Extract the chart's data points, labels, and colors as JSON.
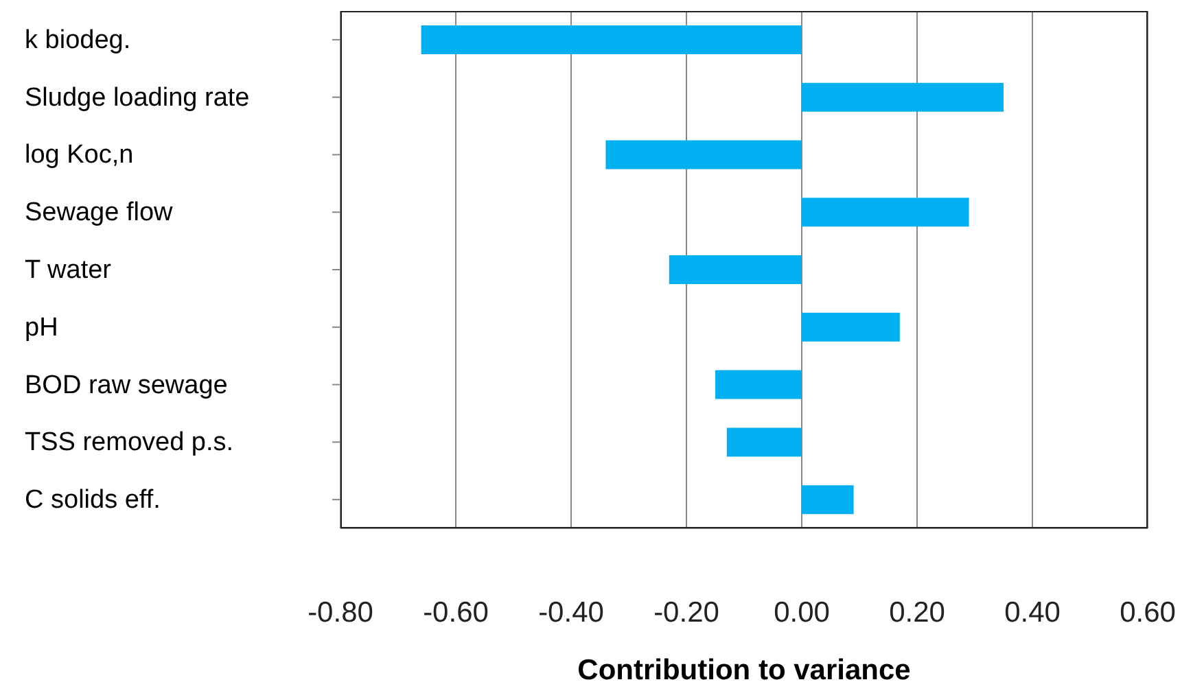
{
  "chart_data": {
    "type": "bar",
    "orientation": "horizontal",
    "xlabel": "Contribution to variance",
    "categories": [
      "k biodeg.",
      "Sludge loading rate",
      "log Koc,n",
      "Sewage flow",
      "T water",
      "pH",
      "BOD raw sewage",
      "TSS removed p.s.",
      "C solids eff."
    ],
    "values": [
      -0.66,
      0.35,
      -0.34,
      0.29,
      -0.23,
      0.17,
      -0.15,
      -0.13,
      0.09
    ],
    "color": "#00b0f0",
    "xlim": [
      -0.8,
      0.6
    ],
    "xticks": [
      {
        "value": -0.8,
        "label": "-0.80"
      },
      {
        "value": -0.6,
        "label": "-0.60"
      },
      {
        "value": -0.4,
        "label": "-0.40"
      },
      {
        "value": -0.2,
        "label": "-0.20"
      },
      {
        "value": 0,
        "label": "0.00"
      },
      {
        "value": 0.2,
        "label": "0.20"
      },
      {
        "value": 0.4,
        "label": "0.40"
      },
      {
        "value": 0.6,
        "label": "0.60"
      }
    ],
    "grid": "x"
  }
}
